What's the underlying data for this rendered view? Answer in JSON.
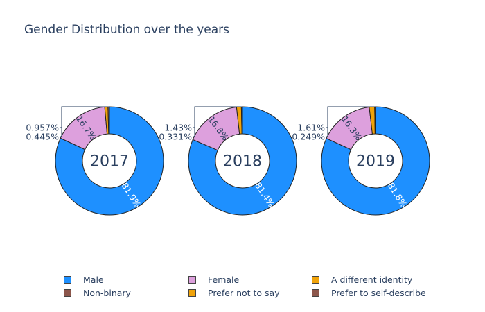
{
  "chart_data": {
    "type": "pie",
    "subtype": "donut",
    "title": "Gender Distribution over the years",
    "categories": [
      "Male",
      "Female",
      "A different identity",
      "Non-binary",
      "Prefer not to say",
      "Prefer to self-describe"
    ],
    "colors": {
      "Male": "#1e90ff",
      "Female": "#dda0dd",
      "A different identity": "#f0a30a",
      "Non-binary": "#8c564b",
      "Prefer not to say": "#f0a30a",
      "Prefer to self-describe": "#8c564b"
    },
    "pies": [
      {
        "year": "2017",
        "slices": [
          {
            "label": "Male",
            "value": 81.9,
            "text": "81.9%"
          },
          {
            "label": "Female",
            "value": 16.7,
            "text": "16.7%"
          },
          {
            "label": "Prefer not to say",
            "value": 0.957,
            "text": "0.957%"
          },
          {
            "label": "Non-binary",
            "value": 0.445,
            "text": "0.445%"
          }
        ]
      },
      {
        "year": "2018",
        "slices": [
          {
            "label": "Male",
            "value": 81.4,
            "text": "81.4%"
          },
          {
            "label": "Female",
            "value": 16.8,
            "text": "16.8%"
          },
          {
            "label": "Prefer not to say",
            "value": 1.43,
            "text": "1.43%"
          },
          {
            "label": "Non-binary",
            "value": 0.331,
            "text": "0.331%"
          }
        ]
      },
      {
        "year": "2019",
        "slices": [
          {
            "label": "Male",
            "value": 81.8,
            "text": "81.8%"
          },
          {
            "label": "Female",
            "value": 16.3,
            "text": "16.3%"
          },
          {
            "label": "Prefer not to say",
            "value": 1.61,
            "text": "1.61%"
          },
          {
            "label": "Non-binary",
            "value": 0.249,
            "text": "0.249%"
          }
        ]
      }
    ],
    "legend": {
      "position": "bottom",
      "entries": [
        {
          "label": "Male",
          "color": "#1e90ff"
        },
        {
          "label": "Female",
          "color": "#dda0dd"
        },
        {
          "label": "A different identity",
          "color": "#f0a30a"
        },
        {
          "label": "Non-binary",
          "color": "#8c564b"
        },
        {
          "label": "Prefer not to say",
          "color": "#f0a30a"
        },
        {
          "label": "Prefer to self-describe",
          "color": "#8c564b"
        }
      ]
    }
  }
}
